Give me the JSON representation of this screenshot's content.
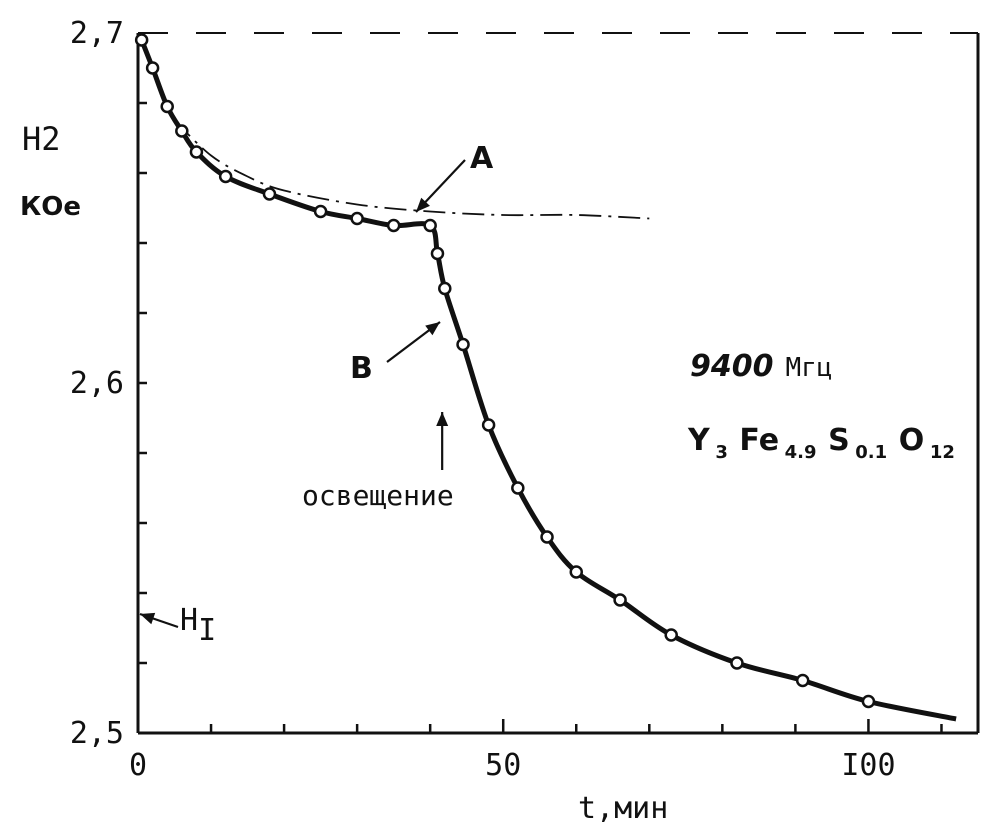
{
  "chart_data": {
    "type": "line",
    "xlabel": "t,мин",
    "ylabel": "H2",
    "ylabel_unit": "КОе",
    "xlim": [
      0,
      115
    ],
    "ylim": [
      2.5,
      2.7
    ],
    "x_ticks": [
      0,
      50,
      100
    ],
    "x_tick_labels": [
      "0",
      "50",
      "I00"
    ],
    "y_ticks": [
      2.5,
      2.6,
      2.7
    ],
    "y_tick_labels": [
      "2,5",
      "2,6",
      "2,7"
    ],
    "x_minor_step": 10,
    "y_minor_step": 0.02,
    "grid": false,
    "series": [
      {
        "name": "B",
        "style": "solid",
        "markers": true,
        "points": [
          {
            "x": 0.5,
            "y": 2.698
          },
          {
            "x": 2,
            "y": 2.69
          },
          {
            "x": 4,
            "y": 2.679
          },
          {
            "x": 6,
            "y": 2.672
          },
          {
            "x": 8,
            "y": 2.666
          },
          {
            "x": 12,
            "y": 2.659
          },
          {
            "x": 18,
            "y": 2.654
          },
          {
            "x": 25,
            "y": 2.649
          },
          {
            "x": 30,
            "y": 2.647
          },
          {
            "x": 35,
            "y": 2.645
          },
          {
            "x": 40,
            "y": 2.645
          },
          {
            "x": 41,
            "y": 2.637
          },
          {
            "x": 42,
            "y": 2.627
          },
          {
            "x": 44.5,
            "y": 2.611
          },
          {
            "x": 48,
            "y": 2.588
          },
          {
            "x": 52,
            "y": 2.57
          },
          {
            "x": 56,
            "y": 2.556
          },
          {
            "x": 60,
            "y": 2.546
          },
          {
            "x": 66,
            "y": 2.538
          },
          {
            "x": 73,
            "y": 2.528
          },
          {
            "x": 82,
            "y": 2.52
          },
          {
            "x": 91,
            "y": 2.515
          },
          {
            "x": 100,
            "y": 2.509
          }
        ],
        "curve": [
          {
            "x": 0.5,
            "y": 2.698
          },
          {
            "x": 2,
            "y": 2.69
          },
          {
            "x": 4,
            "y": 2.679
          },
          {
            "x": 6,
            "y": 2.672
          },
          {
            "x": 8,
            "y": 2.666
          },
          {
            "x": 12,
            "y": 2.659
          },
          {
            "x": 18,
            "y": 2.654
          },
          {
            "x": 25,
            "y": 2.649
          },
          {
            "x": 30,
            "y": 2.647
          },
          {
            "x": 35,
            "y": 2.645
          },
          {
            "x": 40,
            "y": 2.645
          },
          {
            "x": 41,
            "y": 2.637
          },
          {
            "x": 42,
            "y": 2.627
          },
          {
            "x": 44.5,
            "y": 2.611
          },
          {
            "x": 48,
            "y": 2.588
          },
          {
            "x": 52,
            "y": 2.57
          },
          {
            "x": 56,
            "y": 2.556
          },
          {
            "x": 60,
            "y": 2.546
          },
          {
            "x": 66,
            "y": 2.538
          },
          {
            "x": 73,
            "y": 2.528
          },
          {
            "x": 82,
            "y": 2.52
          },
          {
            "x": 91,
            "y": 2.515
          },
          {
            "x": 100,
            "y": 2.509
          },
          {
            "x": 112,
            "y": 2.504
          }
        ]
      },
      {
        "name": "A",
        "style": "dash-dot",
        "markers": false,
        "curve": [
          {
            "x": 5,
            "y": 2.675
          },
          {
            "x": 10,
            "y": 2.665
          },
          {
            "x": 15,
            "y": 2.659
          },
          {
            "x": 20,
            "y": 2.655
          },
          {
            "x": 30,
            "y": 2.651
          },
          {
            "x": 40,
            "y": 2.649
          },
          {
            "x": 50,
            "y": 2.648
          },
          {
            "x": 60,
            "y": 2.648
          },
          {
            "x": 70,
            "y": 2.647
          }
        ]
      }
    ],
    "annotations": {
      "label_a": "A",
      "label_b": "B",
      "frequency": "9400",
      "frequency_unit": "Мгц",
      "formula_parts": [
        "Y",
        "3",
        "Fe",
        "4.9",
        "S",
        "0.1",
        "O",
        "12"
      ],
      "illumination": "освещение",
      "illumination_x": 40,
      "h1_label": "H",
      "h1_sub": "I",
      "h1_level": 2.534
    }
  }
}
